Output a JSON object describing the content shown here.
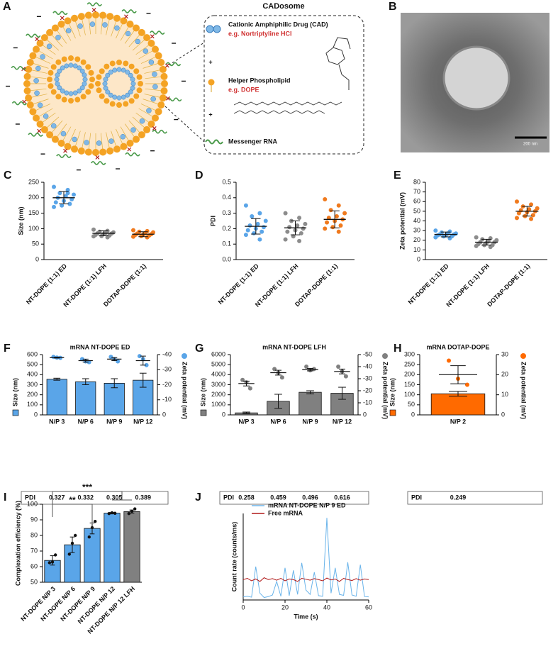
{
  "diagram": {
    "panel": "A",
    "title": "CADosome",
    "items": [
      {
        "label": "Cationic Amphiphilic Drug (CAD)",
        "example": "e.g. Nortriptyline HCl"
      },
      {
        "label": "Helper Phospholipid",
        "example": "e.g. DOPE"
      },
      {
        "label": "Messenger RNA"
      }
    ],
    "operators": [
      "+",
      "+"
    ]
  },
  "micrograph": {
    "panel": "B",
    "scale_bar": "200 nm"
  },
  "chart_data": [
    {
      "type": "dot",
      "panel": "C",
      "ylabel": "Size (nm)",
      "categories": [
        "NT-DOPE (1:1) ED",
        "NT-DOPE (1:1) LFH",
        "DOTAP-DOPE (1:1)"
      ],
      "colors": [
        "#5aa5e8",
        "#8c8c8c",
        "#f07a1e"
      ],
      "points": [
        [
          235,
          225,
          215,
          210,
          205,
          200,
          195,
          190,
          185,
          180,
          175,
          170,
          215
        ],
        [
          97,
          93,
          90,
          88,
          86,
          85,
          84,
          82,
          80,
          78,
          76,
          75,
          72
        ],
        [
          95,
          92,
          90,
          88,
          86,
          84,
          82,
          81,
          80,
          78,
          76,
          74,
          72
        ]
      ],
      "means": [
        200,
        85,
        82
      ],
      "sd": [
        20,
        8,
        8
      ],
      "ylim": [
        0,
        250
      ],
      "yticks": [
        0,
        50,
        100,
        150,
        200,
        250
      ]
    },
    {
      "type": "dot",
      "panel": "D",
      "ylabel": "PDI",
      "categories": [
        "NT-DOPE (1:1) ED",
        "NT-DOPE (1:1) LFH",
        "DOTAP-DOPE (1:1)"
      ],
      "colors": [
        "#5aa5e8",
        "#8c8c8c",
        "#f07a1e"
      ],
      "points": [
        [
          0.35,
          0.3,
          0.28,
          0.25,
          0.23,
          0.22,
          0.21,
          0.2,
          0.19,
          0.18,
          0.17,
          0.16,
          0.13
        ],
        [
          0.3,
          0.27,
          0.25,
          0.23,
          0.22,
          0.21,
          0.2,
          0.19,
          0.18,
          0.17,
          0.15,
          0.13,
          0.12
        ],
        [
          0.39,
          0.35,
          0.32,
          0.3,
          0.28,
          0.27,
          0.26,
          0.25,
          0.24,
          0.22,
          0.21,
          0.2,
          0.18
        ]
      ],
      "means": [
        0.215,
        0.205,
        0.26
      ],
      "sd": [
        0.05,
        0.045,
        0.055
      ],
      "ylim": [
        0,
        0.5
      ],
      "yticks": [
        {
          "value": 0,
          "label": "0.0"
        },
        0.1,
        0.2,
        0.3,
        0.4,
        0.5
      ]
    },
    {
      "type": "dot",
      "panel": "E",
      "ylabel": "Zeta potential (mV)",
      "categories": [
        "NT-DOPE (1:1) ED",
        "NT-DOPE (1:1) LFH",
        "DOTAP-DOPE (1:1)"
      ],
      "colors": [
        "#5aa5e8",
        "#8c8c8c",
        "#f07a1e"
      ],
      "points": [
        [
          30,
          29,
          28,
          27,
          27,
          26,
          26,
          25,
          25,
          24,
          24,
          23,
          22
        ],
        [
          23,
          22,
          21,
          20,
          19,
          18,
          18,
          17,
          16,
          15,
          15,
          14,
          13
        ],
        [
          60,
          57,
          55,
          53,
          52,
          51,
          50,
          49,
          48,
          46,
          45,
          43,
          42
        ]
      ],
      "means": [
        26,
        18,
        50
      ],
      "sd": [
        2.5,
        3,
        5
      ],
      "ylim": [
        0,
        80
      ],
      "yticks": [
        0,
        10,
        20,
        30,
        40,
        50,
        60,
        70,
        80
      ]
    },
    {
      "type": "bar_dual",
      "panel": "F",
      "title": "mRNA NT-DOPE ED",
      "categories": [
        "N/P 3",
        "N/P 6",
        "N/P 9",
        "N/P 12"
      ],
      "ylim": [
        0,
        600
      ],
      "yticks": [
        0,
        100,
        200,
        300,
        400,
        500,
        600
      ],
      "y2lim": [
        0,
        -40
      ],
      "y2ticks": [
        0,
        -10,
        -20,
        -30,
        -40
      ],
      "series": [
        {
          "name": "Size (nm)",
          "color": "#5aa5e8",
          "values": [
            355,
            330,
            315,
            345
          ],
          "errors": [
            10,
            30,
            45,
            70
          ]
        },
        {
          "name": "Zeta potential (mV)",
          "axis": "y2",
          "color": "#5aa5e8",
          "values": [
            -38,
            -36,
            -37,
            -36
          ],
          "errors": [
            0.3,
            1,
            1,
            3
          ],
          "points": [
            [
              -38.5,
              -38,
              -37.8
            ],
            [
              -37,
              -35.5,
              -35
            ],
            [
              -38.5,
              -37,
              -35.5
            ],
            [
              -39,
              -37,
              -33
            ]
          ]
        }
      ],
      "table": {
        "header": "PDI",
        "values": [
          0.327,
          0.332,
          0.305,
          0.389
        ]
      }
    },
    {
      "type": "bar_dual",
      "panel": "G",
      "title": "mRNA NT-DOPE LFH",
      "categories": [
        "N/P 3",
        "N/P 6",
        "N/P 9",
        "N/P 12"
      ],
      "ylim": [
        0,
        6000
      ],
      "yticks": [
        0,
        1000,
        2000,
        3000,
        4000,
        5000,
        6000
      ],
      "y2lim": [
        0,
        -50
      ],
      "y2ticks": [
        0,
        -10,
        -20,
        -30,
        -40,
        -50
      ],
      "series": [
        {
          "name": "Size (nm)",
          "color": "#808080",
          "values": [
            200,
            1350,
            2250,
            2150
          ],
          "errors": [
            80,
            700,
            150,
            600
          ]
        },
        {
          "name": "Zeta potential (mV)",
          "axis": "y2",
          "color": "#808080",
          "values": [
            -26,
            -35,
            -37.5,
            -36
          ],
          "errors": [
            2,
            2,
            1,
            2
          ],
          "points": [
            [
              -29,
              -27,
              -22
            ],
            [
              -38,
              -35,
              -31
            ],
            [
              -40,
              -37,
              -38
            ],
            [
              -40,
              -36,
              -32
            ]
          ]
        }
      ],
      "table": {
        "header": "PDI",
        "values": [
          0.258,
          0.459,
          0.496,
          0.616
        ]
      }
    },
    {
      "type": "bar_dual",
      "panel": "H",
      "title": "mRNA DOTAP-DOPE",
      "categories": [
        "N/P 2"
      ],
      "ylim": [
        0,
        300
      ],
      "yticks": [
        0,
        50,
        100,
        150,
        200,
        250,
        300
      ],
      "y2lim": [
        0,
        30
      ],
      "y2ticks": [
        0,
        10,
        20,
        30
      ],
      "series": [
        {
          "name": "Size (nm)",
          "color": "#ff6a00",
          "values": [
            105
          ],
          "errors": [
            12
          ]
        },
        {
          "name": "Zeta potential (mV)",
          "axis": "y2",
          "color": "#ff6a00",
          "values": [
            20
          ],
          "errors": [
            4.5
          ],
          "points": [
            [
              27,
              18,
              15
            ]
          ]
        }
      ],
      "table": {
        "header": "PDI",
        "values": [
          0.249
        ]
      }
    },
    {
      "type": "bar",
      "panel": "I",
      "ylabel": "Complexation efficiency (%)",
      "categories": [
        "NT-DOPE N/P 3",
        "NT-DOPE N/P 6",
        "NT-DOPE N/P 9",
        "NT-DOPE N/P 12",
        "NT-DOPE N/P 12 LFH"
      ],
      "colors": [
        "#5aa5e8",
        "#5aa5e8",
        "#5aa5e8",
        "#5aa5e8",
        "#808080"
      ],
      "values": [
        64,
        74,
        84.5,
        94.3,
        95.3
      ],
      "errors": [
        3,
        5,
        3.5,
        0.4,
        1
      ],
      "points": [
        [
          62.5,
          63,
          67.5
        ],
        [
          68,
          75,
          80
        ],
        [
          79,
          85,
          89
        ],
        [
          94,
          94.5,
          94.2
        ],
        [
          94,
          95.5,
          97
        ]
      ],
      "annotations": [
        "**",
        "***"
      ],
      "ylim": [
        50,
        100
      ],
      "yticks": [
        50,
        60,
        70,
        80,
        90,
        100
      ]
    },
    {
      "type": "line",
      "panel": "J",
      "xlabel": "Time (s)",
      "ylabel": "Count rate (counts/ms)",
      "x": [
        0,
        2,
        4,
        6,
        8,
        10,
        12,
        14,
        16,
        18,
        20,
        22,
        24,
        26,
        28,
        30,
        32,
        34,
        36,
        38,
        40,
        42,
        44,
        46,
        48,
        50,
        52,
        54,
        56,
        58,
        60
      ],
      "series": [
        {
          "name": "mRNA NT-DOPE N/P 9 ED",
          "color": "#6ab4ea",
          "values": [
            50,
            60,
            45,
            540,
            110,
            40,
            55,
            80,
            300,
            60,
            520,
            70,
            480,
            90,
            600,
            160,
            90,
            450,
            70,
            60,
            1330,
            110,
            520,
            90,
            75,
            610,
            80,
            60,
            570,
            55,
            50
          ]
        },
        {
          "name": "Free mRNA",
          "color": "#b01818",
          "values": [
            330,
            350,
            310,
            340,
            300,
            360,
            330,
            345,
            320,
            350,
            310,
            340,
            330,
            300,
            350,
            335,
            320,
            345,
            330,
            310,
            355,
            325,
            340,
            300,
            350,
            330,
            315,
            345,
            320,
            340,
            330
          ]
        }
      ],
      "xlim": [
        0,
        60
      ],
      "xticks": [
        0,
        20,
        40,
        60
      ],
      "ylim": [
        0,
        1400
      ]
    }
  ]
}
